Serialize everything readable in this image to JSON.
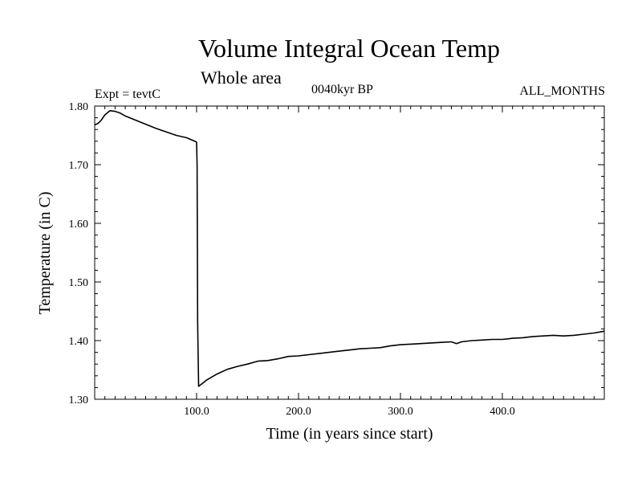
{
  "chart_data": {
    "type": "line",
    "title": "Volume Integral Ocean Temp",
    "subtitle": "Whole area",
    "annotations": {
      "left": "Expt = tevtC",
      "center": "0040kyr BP",
      "right": "ALL_MONTHS"
    },
    "xlabel": "Time (in years since start)",
    "ylabel": "Temperature (in C)",
    "xlim": [
      0,
      500
    ],
    "ylim": [
      1.3,
      1.8
    ],
    "xticks": [
      100,
      200,
      300,
      400
    ],
    "xtick_labels": [
      "100.0",
      "200.0",
      "300.0",
      "400.0"
    ],
    "yticks": [
      1.3,
      1.4,
      1.5,
      1.6,
      1.7,
      1.8
    ],
    "ytick_labels": [
      "1.30",
      "1.40",
      "1.50",
      "1.60",
      "1.70",
      "1.80"
    ],
    "grid": false,
    "legend": "none",
    "line_color": "#000000",
    "series": [
      {
        "x": [
          0,
          3,
          6,
          10,
          15,
          20,
          25,
          30,
          40,
          50,
          60,
          70,
          80,
          90,
          99.5,
          100,
          100.5,
          101,
          102,
          105,
          110,
          120,
          130,
          140,
          150,
          160,
          170,
          180,
          190,
          200,
          210,
          220,
          230,
          240,
          250,
          260,
          270,
          280,
          290,
          300,
          310,
          320,
          330,
          340,
          350,
          355,
          360,
          370,
          380,
          390,
          400,
          410,
          420,
          430,
          440,
          450,
          460,
          470,
          480,
          490,
          500
        ],
        "y": [
          1.768,
          1.77,
          1.775,
          1.785,
          1.792,
          1.791,
          1.788,
          1.783,
          1.776,
          1.769,
          1.762,
          1.756,
          1.75,
          1.746,
          1.739,
          1.738,
          1.7,
          1.43,
          1.322,
          1.326,
          1.333,
          1.343,
          1.351,
          1.356,
          1.36,
          1.365,
          1.366,
          1.369,
          1.373,
          1.374,
          1.376,
          1.378,
          1.38,
          1.382,
          1.384,
          1.386,
          1.387,
          1.388,
          1.391,
          1.393,
          1.394,
          1.395,
          1.396,
          1.397,
          1.398,
          1.395,
          1.398,
          1.4,
          1.401,
          1.402,
          1.402,
          1.404,
          1.405,
          1.407,
          1.408,
          1.409,
          1.408,
          1.409,
          1.411,
          1.413,
          1.416
        ]
      }
    ]
  }
}
